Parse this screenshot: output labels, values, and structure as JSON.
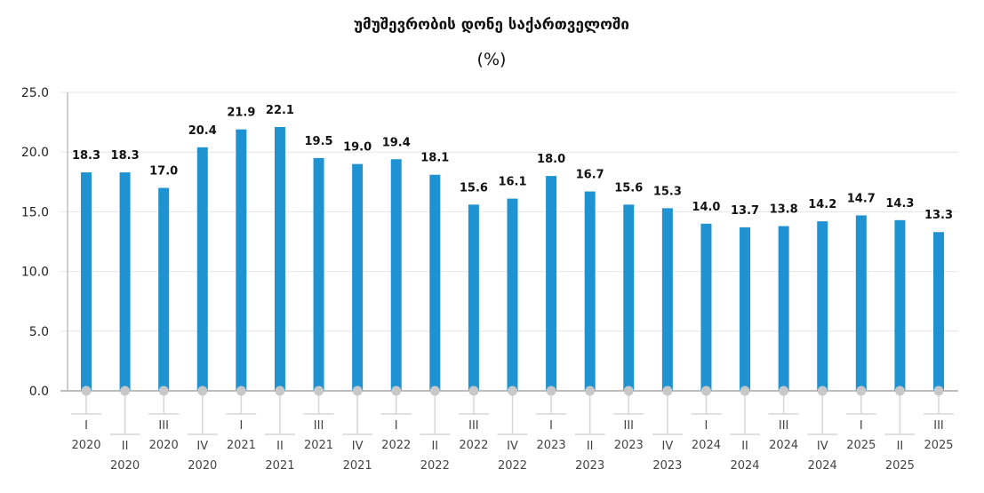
{
  "chart_data": {
    "type": "bar",
    "title": "უმუშევრობის დონე საქართველოში",
    "subtitle": "(%)",
    "xlabel": "",
    "ylabel": "",
    "ylim": [
      0,
      25
    ],
    "yticks": [
      "0.0",
      "5.0",
      "10.0",
      "15.0",
      "20.0",
      "25.0"
    ],
    "grid": true,
    "bar_color": "#1f93d1",
    "categories": [
      [
        "I",
        "2020"
      ],
      [
        "II",
        "2020"
      ],
      [
        "III",
        "2020"
      ],
      [
        "IV",
        "2020"
      ],
      [
        "I",
        "2021"
      ],
      [
        "II",
        "2021"
      ],
      [
        "III",
        "2021"
      ],
      [
        "IV",
        "2021"
      ],
      [
        "I",
        "2022"
      ],
      [
        "II",
        "2022"
      ],
      [
        "III",
        "2022"
      ],
      [
        "IV",
        "2022"
      ],
      [
        "I",
        "2023"
      ],
      [
        "II",
        "2023"
      ],
      [
        "III",
        "2023"
      ],
      [
        "IV",
        "2023"
      ],
      [
        "I",
        "2024"
      ],
      [
        "II",
        "2024"
      ],
      [
        "III",
        "2024"
      ],
      [
        "IV",
        "2024"
      ],
      [
        "I",
        "2025"
      ],
      [
        "II",
        "2025"
      ],
      [
        "III",
        "2025"
      ]
    ],
    "values": [
      18.3,
      18.3,
      17.0,
      20.4,
      21.9,
      22.1,
      19.5,
      19.0,
      19.4,
      18.1,
      15.6,
      16.1,
      18.0,
      16.7,
      15.6,
      15.3,
      14.0,
      13.7,
      13.8,
      14.2,
      14.7,
      14.3,
      13.3
    ],
    "data_labels": [
      "18.3",
      "18.3",
      "17.0",
      "20.4",
      "21.9",
      "22.1",
      "19.5",
      "19.0",
      "19.4",
      "18.1",
      "15.6",
      "16.1",
      "18.0",
      "16.7",
      "15.6",
      "15.3",
      "14.0",
      "13.7",
      "13.8",
      "14.2",
      "14.7",
      "14.3",
      "13.3"
    ]
  }
}
